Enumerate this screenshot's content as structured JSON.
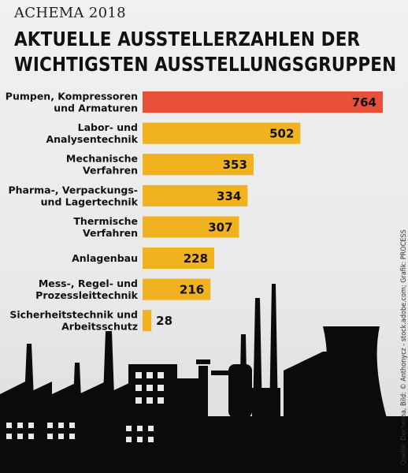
{
  "header": {
    "kicker": "ACHEMA 2018",
    "title_line1": "AKTUELLE AUSSTELLERZAHLEN DER",
    "title_line2": "WICHTIGSTEN AUSSTELLUNGSGRUPPEN"
  },
  "credit": "Quelle: Dechema, Bild: © Anthonycz - stock.adobe.com; Grafik: PROCESS",
  "colors": {
    "highlight": "#e9503a",
    "bar": "#f0b21e",
    "silhouette": "#0b0b0b"
  },
  "chart_data": {
    "type": "bar",
    "orientation": "horizontal",
    "categories": [
      [
        "Pumpen, Kompressoren",
        "und Armaturen"
      ],
      [
        "Labor- und",
        "Analysentechnik"
      ],
      [
        "Mechanische",
        "Verfahren"
      ],
      [
        "Pharma-, Verpackungs-",
        "und Lagertechnik"
      ],
      [
        "Thermische",
        "Verfahren"
      ],
      [
        "Anlagenbau"
      ],
      [
        "Mess-, Regel- und",
        "Prozessleittechnik"
      ],
      [
        "Sicherheitstechnik und",
        "Arbeitsschutz"
      ]
    ],
    "values": [
      764,
      502,
      353,
      334,
      307,
      228,
      216,
      28
    ],
    "highlight_index": 0,
    "xlim": [
      0,
      764
    ]
  }
}
